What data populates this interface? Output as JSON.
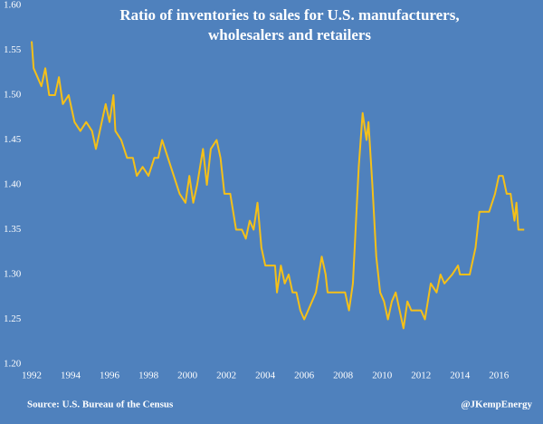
{
  "chart_data": {
    "type": "line",
    "title": [
      "Ratio of  inventories to sales for U.S. manufacturers,",
      "wholesalers and retailers"
    ],
    "source": "Source: U.S. Bureau of the Census",
    "credit": "@JKempEnergy",
    "xlim": [
      1992,
      2017.8
    ],
    "xticks": [
      1992,
      1994,
      1996,
      1998,
      2000,
      2002,
      2004,
      2006,
      2008,
      2010,
      2012,
      2014,
      2016
    ],
    "ylim": [
      1.2,
      1.6
    ],
    "yticks": [
      {
        "value": 1.2,
        "label": "1.20"
      },
      {
        "value": 1.25,
        "label": "1.25"
      },
      {
        "value": 1.3,
        "label": "1.30"
      },
      {
        "value": 1.35,
        "label": "1.35"
      },
      {
        "value": 1.4,
        "label": "1.40"
      },
      {
        "value": 1.45,
        "label": "1.45"
      },
      {
        "value": 1.5,
        "label": "1.50"
      },
      {
        "value": 1.55,
        "label": "1.55"
      },
      {
        "value": 1.6,
        "label": "1.60"
      }
    ],
    "grid": false,
    "series": [
      {
        "color": "#f5c018",
        "x": [
          1992.0,
          1992.1,
          1992.3,
          1992.5,
          1992.7,
          1992.9,
          1993.2,
          1993.4,
          1993.6,
          1993.9,
          1994.2,
          1994.5,
          1994.8,
          1995.1,
          1995.3,
          1995.6,
          1995.8,
          1996.0,
          1996.2,
          1996.3,
          1996.6,
          1996.9,
          1997.2,
          1997.4,
          1997.7,
          1998.0,
          1998.3,
          1998.5,
          1998.7,
          1999.0,
          1999.3,
          1999.6,
          1999.9,
          2000.1,
          2000.3,
          2000.5,
          2000.8,
          2001.0,
          2001.2,
          2001.5,
          2001.7,
          2001.9,
          2002.2,
          2002.5,
          2002.8,
          2003.0,
          2003.2,
          2003.4,
          2003.6,
          2003.8,
          2004.0,
          2004.3,
          2004.5,
          2004.6,
          2004.8,
          2005.0,
          2005.2,
          2005.4,
          2005.6,
          2005.8,
          2006.0,
          2006.2,
          2006.4,
          2006.6,
          2006.9,
          2007.1,
          2007.2,
          2007.6,
          2007.9,
          2008.1,
          2008.3,
          2008.5,
          2008.8,
          2009.0,
          2009.2,
          2009.3,
          2009.5,
          2009.7,
          2009.9,
          2010.1,
          2010.3,
          2010.5,
          2010.7,
          2010.9,
          2011.1,
          2011.3,
          2011.5,
          2012.0,
          2012.2,
          2012.5,
          2012.8,
          2013.0,
          2013.2,
          2013.6,
          2013.9,
          2014.0,
          2014.5,
          2014.8,
          2015.0,
          2015.5,
          2015.8,
          2016.0,
          2016.2,
          2016.4,
          2016.6,
          2016.8,
          2016.9,
          2017.0,
          2017.3
        ],
        "values": [
          1.56,
          1.53,
          1.52,
          1.51,
          1.53,
          1.5,
          1.5,
          1.52,
          1.49,
          1.5,
          1.47,
          1.46,
          1.47,
          1.46,
          1.44,
          1.47,
          1.49,
          1.47,
          1.5,
          1.46,
          1.45,
          1.43,
          1.43,
          1.41,
          1.42,
          1.41,
          1.43,
          1.43,
          1.45,
          1.43,
          1.41,
          1.39,
          1.38,
          1.41,
          1.38,
          1.4,
          1.44,
          1.4,
          1.44,
          1.45,
          1.43,
          1.39,
          1.39,
          1.35,
          1.35,
          1.34,
          1.36,
          1.35,
          1.38,
          1.33,
          1.31,
          1.31,
          1.31,
          1.28,
          1.31,
          1.29,
          1.3,
          1.28,
          1.28,
          1.26,
          1.25,
          1.26,
          1.27,
          1.28,
          1.32,
          1.3,
          1.28,
          1.28,
          1.28,
          1.28,
          1.26,
          1.29,
          1.42,
          1.48,
          1.45,
          1.47,
          1.4,
          1.32,
          1.28,
          1.27,
          1.25,
          1.27,
          1.28,
          1.26,
          1.24,
          1.27,
          1.26,
          1.26,
          1.25,
          1.29,
          1.28,
          1.3,
          1.29,
          1.3,
          1.31,
          1.3,
          1.3,
          1.33,
          1.37,
          1.37,
          1.39,
          1.41,
          1.41,
          1.39,
          1.39,
          1.36,
          1.38,
          1.35,
          1.35
        ]
      }
    ]
  }
}
